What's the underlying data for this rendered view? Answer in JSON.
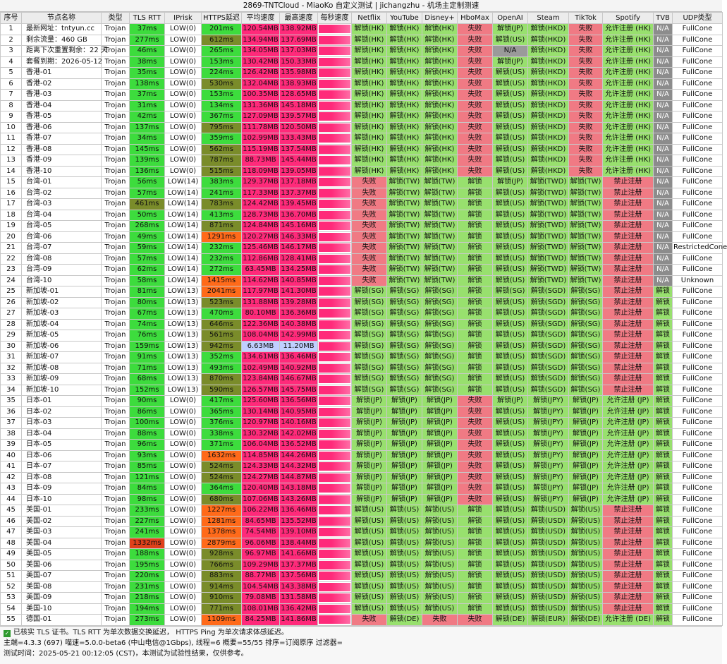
{
  "title": "2869-TNTCloud - MiaoKo 自定义测试 | jichangzhu - 机场主定制测速",
  "columns": [
    "序号",
    "节点名称",
    "类型",
    "TLS RTT",
    "IPrisk",
    "HTTPS延迟",
    "平均速度",
    "最高速度",
    "每秒速度",
    "Netflix",
    "YouTube",
    "Disney+",
    "HboMax",
    "OpenAI",
    "Steam",
    "TikTok",
    "Spotify",
    "TVB",
    "UDP类型"
  ],
  "colors": {
    "ok": "#98e06e",
    "fail": "#f07a84",
    "na": "#8c8c8c",
    "good": "#3ddc3d",
    "mid": "#7a8c2a",
    "warn": "#ff6a1a",
    "bad": "#ff2a7a",
    "slow": "#c0cfff",
    "pink": "#ff2a7a",
    "na_openai": "#9a9a9a"
  },
  "rows": [
    [
      "1",
      "最新网址：tntyun.cc",
      "Trojan",
      "37ms",
      "LOW(0)",
      "201ms",
      "120.54MB",
      "138.92MB",
      "",
      "解锁(HK)",
      "解锁(HK)",
      "解锁(HK)",
      "失败",
      "解锁(JP)",
      "解锁(HKD)",
      "失败",
      "允许注册 (HK)",
      "N/A",
      "FullCone"
    ],
    [
      "2",
      "剩余流量：460 GB",
      "Trojan",
      "277ms",
      "LOW(0)",
      "612ms",
      "134.94MB",
      "137.69MB",
      "",
      "解锁(HK)",
      "解锁(HK)",
      "解锁(HK)",
      "失败",
      "解锁(US)",
      "解锁(HKD)",
      "失败",
      "允许注册 (HK)",
      "N/A",
      "FullCone"
    ],
    [
      "3",
      "距离下次重置剩余：22 天",
      "Trojan",
      "46ms",
      "LOW(0)",
      "265ms",
      "134.05MB",
      "137.03MB",
      "",
      "解锁(HK)",
      "解锁(HK)",
      "解锁(HK)",
      "失败",
      "N/A",
      "解锁(HKD)",
      "失败",
      "允许注册 (HK)",
      "N/A",
      "FullCone"
    ],
    [
      "4",
      "套餐到期：2026-05-12",
      "Trojan",
      "38ms",
      "LOW(0)",
      "153ms",
      "130.42MB",
      "150.33MB",
      "",
      "解锁(HK)",
      "解锁(HK)",
      "解锁(HK)",
      "失败",
      "解锁(JP)",
      "解锁(HKD)",
      "失败",
      "允许注册 (HK)",
      "N/A",
      "FullCone"
    ],
    [
      "5",
      "香港-01",
      "Trojan",
      "35ms",
      "LOW(0)",
      "224ms",
      "126.42MB",
      "135.98MB",
      "",
      "解锁(HK)",
      "解锁(HK)",
      "解锁(HK)",
      "失败",
      "解锁(US)",
      "解锁(HKD)",
      "失败",
      "允许注册 (HK)",
      "N/A",
      "FullCone"
    ],
    [
      "6",
      "香港-02",
      "Trojan",
      "138ms",
      "LOW(0)",
      "530ms",
      "132.04MB",
      "138.93MB",
      "",
      "解锁(HK)",
      "解锁(HK)",
      "解锁(HK)",
      "失败",
      "解锁(US)",
      "解锁(HKD)",
      "失败",
      "允许注册 (HK)",
      "N/A",
      "FullCone"
    ],
    [
      "7",
      "香港-03",
      "Trojan",
      "37ms",
      "LOW(0)",
      "153ms",
      "100.35MB",
      "128.65MB",
      "",
      "解锁(HK)",
      "解锁(HK)",
      "解锁(HK)",
      "失败",
      "解锁(US)",
      "解锁(HKD)",
      "失败",
      "允许注册 (HK)",
      "N/A",
      "FullCone"
    ],
    [
      "8",
      "香港-04",
      "Trojan",
      "31ms",
      "LOW(0)",
      "134ms",
      "131.36MB",
      "145.18MB",
      "",
      "解锁(HK)",
      "解锁(HK)",
      "解锁(HK)",
      "失败",
      "解锁(US)",
      "解锁(HKD)",
      "失败",
      "允许注册 (HK)",
      "N/A",
      "FullCone"
    ],
    [
      "9",
      "香港-05",
      "Trojan",
      "42ms",
      "LOW(0)",
      "367ms",
      "127.09MB",
      "139.57MB",
      "",
      "解锁(HK)",
      "解锁(HK)",
      "解锁(HK)",
      "失败",
      "解锁(US)",
      "解锁(HKD)",
      "失败",
      "允许注册 (HK)",
      "N/A",
      "FullCone"
    ],
    [
      "10",
      "香港-06",
      "Trojan",
      "137ms",
      "LOW(0)",
      "795ms",
      "111.78MB",
      "120.50MB",
      "",
      "解锁(HK)",
      "解锁(HK)",
      "解锁(HK)",
      "失败",
      "解锁(US)",
      "解锁(HKD)",
      "失败",
      "允许注册 (HK)",
      "N/A",
      "FullCone"
    ],
    [
      "11",
      "香港-07",
      "Trojan",
      "34ms",
      "LOW(0)",
      "359ms",
      "102.99MB",
      "133.43MB",
      "",
      "解锁(HK)",
      "解锁(HK)",
      "解锁(HK)",
      "失败",
      "解锁(US)",
      "解锁(HKD)",
      "失败",
      "允许注册 (HK)",
      "N/A",
      "FullCone"
    ],
    [
      "12",
      "香港-08",
      "Trojan",
      "145ms",
      "LOW(0)",
      "562ms",
      "115.19MB",
      "137.54MB",
      "",
      "解锁(HK)",
      "解锁(HK)",
      "解锁(HK)",
      "失败",
      "解锁(US)",
      "解锁(HKD)",
      "失败",
      "允许注册 (HK)",
      "N/A",
      "FullCone"
    ],
    [
      "13",
      "香港-09",
      "Trojan",
      "139ms",
      "LOW(0)",
      "787ms",
      "88.73MB",
      "145.44MB",
      "",
      "解锁(HK)",
      "解锁(HK)",
      "解锁(HK)",
      "失败",
      "解锁(US)",
      "解锁(HKD)",
      "失败",
      "允许注册 (HK)",
      "N/A",
      "FullCone"
    ],
    [
      "14",
      "香港-10",
      "Trojan",
      "136ms",
      "LOW(0)",
      "515ms",
      "118.09MB",
      "139.05MB",
      "",
      "解锁(HK)",
      "解锁(HK)",
      "解锁(HK)",
      "失败",
      "解锁(US)",
      "解锁(HKD)",
      "失败",
      "允许注册 (HK)",
      "N/A",
      "FullCone"
    ],
    [
      "15",
      "台湾-01",
      "Trojan",
      "56ms",
      "LOW(14)",
      "383ms",
      "129.37MB",
      "137.18MB",
      "",
      "失败",
      "解锁(TW)",
      "解锁(TW)",
      "解锁",
      "解锁(JP)",
      "解锁(TWD)",
      "解锁(TW)",
      "禁止注册",
      "N/A",
      "FullCone"
    ],
    [
      "16",
      "台湾-02",
      "Trojan",
      "57ms",
      "LOW(14)",
      "241ms",
      "117.33MB",
      "137.37MB",
      "",
      "失败",
      "解锁(TW)",
      "解锁(TW)",
      "解锁",
      "解锁(US)",
      "解锁(TWD)",
      "解锁(TW)",
      "禁止注册",
      "N/A",
      "FullCone"
    ],
    [
      "17",
      "台湾-03",
      "Trojan",
      "461ms",
      "LOW(14)",
      "783ms",
      "124.42MB",
      "139.45MB",
      "",
      "失败",
      "解锁(TW)",
      "解锁(TW)",
      "解锁",
      "解锁(US)",
      "解锁(TWD)",
      "解锁(TW)",
      "禁止注册",
      "N/A",
      "FullCone"
    ],
    [
      "18",
      "台湾-04",
      "Trojan",
      "50ms",
      "LOW(14)",
      "413ms",
      "128.73MB",
      "136.70MB",
      "",
      "失败",
      "解锁(TW)",
      "解锁(TW)",
      "解锁",
      "解锁(US)",
      "解锁(TWD)",
      "解锁(TW)",
      "禁止注册",
      "N/A",
      "FullCone"
    ],
    [
      "19",
      "台湾-05",
      "Trojan",
      "268ms",
      "LOW(14)",
      "871ms",
      "124.84MB",
      "145.16MB",
      "",
      "失败",
      "解锁(TW)",
      "解锁(TW)",
      "解锁",
      "解锁(US)",
      "解锁(TWD)",
      "解锁(TW)",
      "禁止注册",
      "N/A",
      "FullCone"
    ],
    [
      "20",
      "台湾-06",
      "Trojan",
      "49ms",
      "LOW(14)",
      "1291ms",
      "120.27MB",
      "146.33MB",
      "",
      "失败",
      "解锁(TW)",
      "解锁(TW)",
      "解锁",
      "解锁(US)",
      "解锁(TWD)",
      "解锁(TW)",
      "禁止注册",
      "N/A",
      "FullCone"
    ],
    [
      "21",
      "台湾-07",
      "Trojan",
      "59ms",
      "LOW(14)",
      "232ms",
      "125.46MB",
      "146.17MB",
      "",
      "失败",
      "解锁(TW)",
      "解锁(TW)",
      "解锁",
      "解锁(US)",
      "解锁(TWD)",
      "解锁(TW)",
      "禁止注册",
      "N/A",
      "RestrictedCone"
    ],
    [
      "22",
      "台湾-08",
      "Trojan",
      "57ms",
      "LOW(14)",
      "232ms",
      "112.86MB",
      "128.41MB",
      "",
      "失败",
      "解锁(TW)",
      "解锁(TW)",
      "解锁",
      "解锁(US)",
      "解锁(TWD)",
      "解锁(TW)",
      "禁止注册",
      "N/A",
      "FullCone"
    ],
    [
      "23",
      "台湾-09",
      "Trojan",
      "62ms",
      "LOW(14)",
      "272ms",
      "63.45MB",
      "134.25MB",
      "",
      "失败",
      "解锁(TW)",
      "解锁(TW)",
      "解锁",
      "解锁(US)",
      "解锁(TWD)",
      "解锁(TW)",
      "禁止注册",
      "N/A",
      "FullCone"
    ],
    [
      "24",
      "台湾-10",
      "Trojan",
      "58ms",
      "LOW(14)",
      "1415ms",
      "114.62MB",
      "140.85MB",
      "",
      "失败",
      "解锁(TW)",
      "解锁(TW)",
      "解锁",
      "解锁(US)",
      "解锁(TWD)",
      "解锁(TW)",
      "禁止注册",
      "N/A",
      "Unknown"
    ],
    [
      "25",
      "新加坡-01",
      "Trojan",
      "81ms",
      "LOW(13)",
      "2041ms",
      "117.97MB",
      "141.30MB",
      "",
      "解锁(SG)",
      "解锁(SG)",
      "解锁(SG)",
      "解锁",
      "解锁(SG)",
      "解锁(SGD)",
      "解锁(SG)",
      "禁止注册",
      "解锁",
      "FullCone"
    ],
    [
      "26",
      "新加坡-02",
      "Trojan",
      "80ms",
      "LOW(13)",
      "523ms",
      "131.88MB",
      "139.28MB",
      "",
      "解锁(SG)",
      "解锁(SG)",
      "解锁(SG)",
      "解锁",
      "解锁(US)",
      "解锁(SGD)",
      "解锁(SG)",
      "禁止注册",
      "解锁",
      "FullCone"
    ],
    [
      "27",
      "新加坡-03",
      "Trojan",
      "67ms",
      "LOW(13)",
      "470ms",
      "80.10MB",
      "136.36MB",
      "",
      "解锁(SG)",
      "解锁(SG)",
      "解锁(SG)",
      "解锁",
      "解锁(US)",
      "解锁(SGD)",
      "解锁(SG)",
      "禁止注册",
      "解锁",
      "FullCone"
    ],
    [
      "28",
      "新加坡-04",
      "Trojan",
      "74ms",
      "LOW(13)",
      "646ms",
      "122.36MB",
      "140.38MB",
      "",
      "解锁(SG)",
      "解锁(SG)",
      "解锁(SG)",
      "解锁",
      "解锁(US)",
      "解锁(SGD)",
      "解锁(SG)",
      "禁止注册",
      "解锁",
      "FullCone"
    ],
    [
      "29",
      "新加坡-05",
      "Trojan",
      "76ms",
      "LOW(13)",
      "561ms",
      "108.04MB",
      "142.99MB",
      "",
      "解锁(SG)",
      "解锁(SG)",
      "解锁(SG)",
      "解锁",
      "解锁(US)",
      "解锁(SGD)",
      "解锁(SG)",
      "禁止注册",
      "解锁",
      "FullCone"
    ],
    [
      "30",
      "新加坡-06",
      "Trojan",
      "159ms",
      "LOW(13)",
      "942ms",
      "6.63MB",
      "11.20MB",
      "",
      "解锁(SG)",
      "解锁(SG)",
      "解锁(SG)",
      "解锁",
      "解锁(US)",
      "解锁(SGD)",
      "解锁(SG)",
      "禁止注册",
      "解锁",
      "FullCone"
    ],
    [
      "31",
      "新加坡-07",
      "Trojan",
      "91ms",
      "LOW(13)",
      "352ms",
      "134.61MB",
      "136.46MB",
      "",
      "解锁(SG)",
      "解锁(SG)",
      "解锁(SG)",
      "解锁",
      "解锁(US)",
      "解锁(SGD)",
      "解锁(SG)",
      "禁止注册",
      "解锁",
      "FullCone"
    ],
    [
      "32",
      "新加坡-08",
      "Trojan",
      "71ms",
      "LOW(13)",
      "493ms",
      "102.49MB",
      "140.92MB",
      "",
      "解锁(SG)",
      "解锁(SG)",
      "解锁(SG)",
      "解锁",
      "解锁(US)",
      "解锁(SGD)",
      "解锁(SG)",
      "禁止注册",
      "解锁",
      "FullCone"
    ],
    [
      "33",
      "新加坡-09",
      "Trojan",
      "68ms",
      "LOW(13)",
      "870ms",
      "123.84MB",
      "146.67MB",
      "",
      "解锁(SG)",
      "解锁(SG)",
      "解锁(SG)",
      "解锁",
      "解锁(US)",
      "解锁(SGD)",
      "解锁(SG)",
      "禁止注册",
      "解锁",
      "FullCone"
    ],
    [
      "34",
      "新加坡-10",
      "Trojan",
      "152ms",
      "LOW(13)",
      "590ms",
      "126.57MB",
      "145.75MB",
      "",
      "解锁(SG)",
      "解锁(SG)",
      "解锁(SG)",
      "解锁",
      "解锁(US)",
      "解锁(SGD)",
      "解锁(SG)",
      "禁止注册",
      "解锁",
      "FullCone"
    ],
    [
      "35",
      "日本-01",
      "Trojan",
      "90ms",
      "LOW(0)",
      "417ms",
      "125.60MB",
      "136.56MB",
      "",
      "解锁(JP)",
      "解锁(JP)",
      "解锁(JP)",
      "失败",
      "解锁(JP)",
      "解锁(JPY)",
      "解锁(JP)",
      "允许注册 (JP)",
      "解锁",
      "FullCone"
    ],
    [
      "36",
      "日本-02",
      "Trojan",
      "86ms",
      "LOW(0)",
      "365ms",
      "130.14MB",
      "140.95MB",
      "",
      "解锁(JP)",
      "解锁(JP)",
      "解锁(JP)",
      "失败",
      "解锁(US)",
      "解锁(JPY)",
      "解锁(JP)",
      "允许注册 (JP)",
      "解锁",
      "FullCone"
    ],
    [
      "37",
      "日本-03",
      "Trojan",
      "100ms",
      "LOW(0)",
      "376ms",
      "120.97MB",
      "140.16MB",
      "",
      "解锁(JP)",
      "解锁(JP)",
      "解锁(JP)",
      "失败",
      "解锁(US)",
      "解锁(JPY)",
      "解锁(JP)",
      "允许注册 (JP)",
      "解锁",
      "FullCone"
    ],
    [
      "38",
      "日本-04",
      "Trojan",
      "88ms",
      "LOW(0)",
      "338ms",
      "130.32MB",
      "142.02MB",
      "",
      "解锁(JP)",
      "解锁(JP)",
      "解锁(JP)",
      "失败",
      "解锁(US)",
      "解锁(JPY)",
      "解锁(JP)",
      "允许注册 (JP)",
      "解锁",
      "FullCone"
    ],
    [
      "39",
      "日本-05",
      "Trojan",
      "96ms",
      "LOW(0)",
      "371ms",
      "106.04MB",
      "136.52MB",
      "",
      "解锁(JP)",
      "解锁(JP)",
      "解锁(JP)",
      "失败",
      "解锁(US)",
      "解锁(JPY)",
      "解锁(JP)",
      "允许注册 (JP)",
      "解锁",
      "FullCone"
    ],
    [
      "40",
      "日本-06",
      "Trojan",
      "93ms",
      "LOW(0)",
      "1632ms",
      "114.85MB",
      "144.26MB",
      "",
      "解锁(JP)",
      "解锁(JP)",
      "解锁(JP)",
      "失败",
      "解锁(US)",
      "解锁(JPY)",
      "解锁(JP)",
      "允许注册 (JP)",
      "解锁",
      "FullCone"
    ],
    [
      "41",
      "日本-07",
      "Trojan",
      "85ms",
      "LOW(0)",
      "524ms",
      "124.33MB",
      "144.32MB",
      "",
      "解锁(JP)",
      "解锁(JP)",
      "解锁(JP)",
      "失败",
      "解锁(US)",
      "解锁(JPY)",
      "解锁(JP)",
      "允许注册 (JP)",
      "解锁",
      "FullCone"
    ],
    [
      "42",
      "日本-08",
      "Trojan",
      "121ms",
      "LOW(0)",
      "524ms",
      "124.27MB",
      "144.87MB",
      "",
      "解锁(JP)",
      "解锁(JP)",
      "解锁(JP)",
      "失败",
      "解锁(US)",
      "解锁(JPY)",
      "解锁(JP)",
      "允许注册 (JP)",
      "解锁",
      "FullCone"
    ],
    [
      "43",
      "日本-09",
      "Trojan",
      "84ms",
      "LOW(0)",
      "364ms",
      "120.40MB",
      "143.18MB",
      "",
      "解锁(JP)",
      "解锁(JP)",
      "解锁(JP)",
      "失败",
      "解锁(US)",
      "解锁(JPY)",
      "解锁(JP)",
      "允许注册 (JP)",
      "解锁",
      "FullCone"
    ],
    [
      "44",
      "日本-10",
      "Trojan",
      "98ms",
      "LOW(0)",
      "680ms",
      "107.06MB",
      "143.26MB",
      "",
      "解锁(JP)",
      "解锁(JP)",
      "解锁(JP)",
      "失败",
      "解锁(US)",
      "解锁(JPY)",
      "解锁(JP)",
      "允许注册 (JP)",
      "解锁",
      "FullCone"
    ],
    [
      "45",
      "美国-01",
      "Trojan",
      "233ms",
      "LOW(0)",
      "1227ms",
      "106.22MB",
      "136.46MB",
      "",
      "解锁(US)",
      "解锁(US)",
      "解锁(US)",
      "解锁",
      "解锁(US)",
      "解锁(USD)",
      "解锁(US)",
      "禁止注册",
      "解锁",
      "FullCone"
    ],
    [
      "46",
      "美国-02",
      "Trojan",
      "227ms",
      "LOW(0)",
      "1281ms",
      "84.65MB",
      "135.52MB",
      "",
      "解锁(US)",
      "解锁(US)",
      "解锁(US)",
      "解锁",
      "解锁(US)",
      "解锁(USD)",
      "解锁(US)",
      "禁止注册",
      "解锁",
      "FullCone"
    ],
    [
      "47",
      "美国-03",
      "Trojan",
      "241ms",
      "LOW(0)",
      "1378ms",
      "74.54MB",
      "139.10MB",
      "",
      "解锁(US)",
      "解锁(US)",
      "解锁(US)",
      "解锁",
      "解锁(US)",
      "解锁(USD)",
      "解锁(US)",
      "禁止注册",
      "解锁",
      "FullCone"
    ],
    [
      "48",
      "美国-04",
      "Trojan",
      "1332ms",
      "LOW(0)",
      "2879ms",
      "96.06MB",
      "138.44MB",
      "",
      "解锁(US)",
      "解锁(US)",
      "解锁(US)",
      "解锁",
      "解锁(US)",
      "解锁(USD)",
      "解锁(US)",
      "禁止注册",
      "解锁",
      "FullCone"
    ],
    [
      "49",
      "美国-05",
      "Trojan",
      "188ms",
      "LOW(0)",
      "928ms",
      "96.97MB",
      "141.66MB",
      "",
      "解锁(US)",
      "解锁(US)",
      "解锁(US)",
      "解锁",
      "解锁(US)",
      "解锁(USD)",
      "解锁(US)",
      "禁止注册",
      "解锁",
      "FullCone"
    ],
    [
      "50",
      "美国-06",
      "Trojan",
      "195ms",
      "LOW(0)",
      "766ms",
      "109.29MB",
      "137.37MB",
      "",
      "解锁(US)",
      "解锁(US)",
      "解锁(US)",
      "解锁",
      "解锁(US)",
      "解锁(USD)",
      "解锁(US)",
      "禁止注册",
      "解锁",
      "FullCone"
    ],
    [
      "51",
      "美国-07",
      "Trojan",
      "220ms",
      "LOW(0)",
      "883ms",
      "88.77MB",
      "137.56MB",
      "",
      "解锁(US)",
      "解锁(US)",
      "解锁(US)",
      "解锁",
      "解锁(US)",
      "解锁(USD)",
      "解锁(US)",
      "禁止注册",
      "解锁",
      "FullCone"
    ],
    [
      "52",
      "美国-08",
      "Trojan",
      "231ms",
      "LOW(0)",
      "914ms",
      "104.54MB",
      "143.38MB",
      "",
      "解锁(US)",
      "解锁(US)",
      "解锁(US)",
      "解锁",
      "解锁(US)",
      "解锁(USD)",
      "解锁(US)",
      "禁止注册",
      "解锁",
      "FullCone"
    ],
    [
      "53",
      "美国-09",
      "Trojan",
      "218ms",
      "LOW(0)",
      "910ms",
      "79.08MB",
      "131.58MB",
      "",
      "解锁(US)",
      "解锁(US)",
      "解锁(US)",
      "解锁",
      "解锁(US)",
      "解锁(USD)",
      "解锁(US)",
      "禁止注册",
      "解锁",
      "FullCone"
    ],
    [
      "54",
      "美国-10",
      "Trojan",
      "194ms",
      "LOW(0)",
      "771ms",
      "108.01MB",
      "136.42MB",
      "",
      "解锁(US)",
      "解锁(US)",
      "解锁(US)",
      "解锁",
      "解锁(US)",
      "解锁(USD)",
      "解锁(US)",
      "禁止注册",
      "解锁",
      "FullCone"
    ],
    [
      "55",
      "德国-01",
      "Trojan",
      "273ms",
      "LOW(0)",
      "1109ms",
      "84.25MB",
      "141.86MB",
      "",
      "失败",
      "解锁(DE)",
      "失败",
      "失败",
      "解锁(DE)",
      "解锁(EUR)",
      "解锁(DE)",
      "允许注册 (DE)",
      "解锁",
      "FullCone"
    ]
  ],
  "footer": {
    "line1": "已核实 TLS 证书。TLS RTT 为单次数据交换延迟， HTTPS Ping 为单次请求体感延迟。",
    "line2": "主端=4.3.3 (697) 喵速=5.0.0-beta6 (中山电信@1Gbps), 线程=6 概要=55/55 排序=订阅原序 过滤器=",
    "line3": "测试时间：2025-05-21 00:12:05 (CST)，本测试为试验性结果，仅供参考。"
  }
}
